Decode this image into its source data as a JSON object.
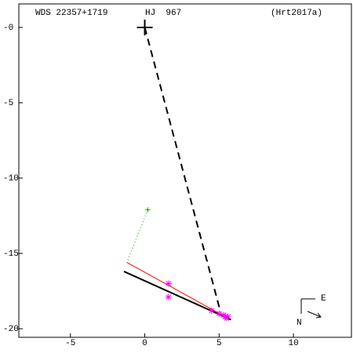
{
  "chart_data": {
    "type": "scatter",
    "title": "WDS 22357+1719",
    "subtitle": "HJ  967",
    "annotation": "(Hrt2017a)",
    "compass": {
      "east": "E",
      "north": "N"
    },
    "xlim": [
      -8.47,
      13.9
    ],
    "ylim": [
      -20.57,
      1.56
    ],
    "xticks": [
      -5,
      0,
      5,
      10
    ],
    "yticks": [
      {
        "value": 0,
        "label": "-0"
      },
      -5,
      -10,
      -15,
      -20
    ],
    "series": [
      {
        "color": "#000000",
        "marker": "plus-large",
        "x": [
          0
        ],
        "values": [
          0
        ]
      },
      {
        "color": "#000000",
        "line": "dashed",
        "x": [
          0,
          5.1
        ],
        "values": [
          0,
          -18.9
        ]
      },
      {
        "color": "#000000",
        "line": "solid",
        "x": [
          -1.4,
          5.8
        ],
        "values": [
          -16.2,
          -19.4
        ]
      },
      {
        "color": "#ff0000",
        "line": "thin",
        "x": [
          -1.2,
          5.6
        ],
        "values": [
          -15.6,
          -19.3
        ]
      },
      {
        "color": "#00a000",
        "line": "dotted",
        "x": [
          0.2,
          -1.2
        ],
        "values": [
          -12.1,
          -15.6
        ]
      },
      {
        "color": "#00a000",
        "marker": "plus",
        "x": [
          0.2
        ],
        "values": [
          -12.1
        ]
      },
      {
        "color": "#ff00ff",
        "marker": "star",
        "x": [
          1.6,
          1.6,
          4.5,
          5.0,
          5.3,
          5.4,
          5.5,
          5.6
        ],
        "values": [
          -17.0,
          -17.9,
          -18.8,
          -19.0,
          -19.1,
          -19.2,
          -19.3,
          -19.2
        ]
      }
    ]
  }
}
